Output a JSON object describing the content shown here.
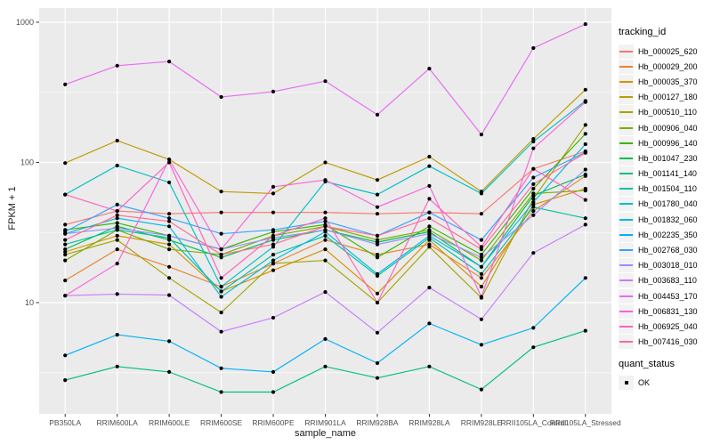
{
  "figure": {
    "y_axis": {
      "label": "FPKM + 1",
      "tick_labels": [
        "1000",
        "100",
        "10"
      ],
      "tick_values": [
        1000,
        100,
        10
      ]
    },
    "x_axis": {
      "label": "sample_name"
    },
    "legend": {
      "tracking_title": "tracking_id",
      "quant_title": "quant_status",
      "quant_label": "OK"
    },
    "colors": {
      "panel_background": "#EBEBEB",
      "gridline_major": "#FFFFFF",
      "gridline_minor": "#F7F7F7",
      "tick_text": "#4D4D4D",
      "point": "#000000",
      "legend_key_background": "#F2F2F2"
    }
  },
  "chart_data": {
    "type": "line",
    "title": "",
    "xlabel": "sample_name",
    "ylabel": "FPKM + 1",
    "y_scale": "log10",
    "ylim": [
      1.6,
      1250
    ],
    "grid": "major-and-minor",
    "legend_position": "right",
    "point_marker": "black dot on every vertex",
    "quant_status": "OK",
    "categories": [
      "PB350LA",
      "RRIM600LA",
      "RRIM600LE",
      "RRIM600SE",
      "RRIM600PE",
      "RRIM901LA",
      "RRIM928BA",
      "RRIM928LA",
      "RRIM928LE",
      "RRII105LA_Control",
      "RRII105LA_Stressed"
    ],
    "series": [
      {
        "name": "Hb_000025_620",
        "color": "#F8766D",
        "values": [
          36,
          45,
          43,
          44,
          44,
          44,
          43,
          44,
          43,
          90,
          120
        ]
      },
      {
        "name": "Hb_000029_200",
        "color": "#EA8331",
        "values": [
          14.4,
          24,
          18,
          13,
          19,
          28,
          22,
          26,
          15,
          45,
          80
        ]
      },
      {
        "name": "Hb_000035_370",
        "color": "#D89000",
        "values": [
          23,
          30,
          26,
          12,
          17,
          24,
          11.6,
          28,
          13,
          50,
          65
        ]
      },
      {
        "name": "Hb_000127_180",
        "color": "#C09B00",
        "values": [
          99,
          143,
          105,
          62,
          60,
          100,
          75,
          110,
          62,
          147,
          330
        ]
      },
      {
        "name": "Hb_000510_110",
        "color": "#A3A500",
        "values": [
          22,
          28,
          15,
          8.5,
          19,
          20,
          10,
          25,
          10.8,
          55,
          185
        ]
      },
      {
        "name": "Hb_000906_040",
        "color": "#7CAE00",
        "values": [
          20,
          33,
          24,
          22,
          30,
          35,
          28,
          33,
          20,
          60,
          63
        ]
      },
      {
        "name": "Hb_000996_140",
        "color": "#39B600",
        "values": [
          33,
          37,
          30,
          24,
          32,
          36,
          21,
          35,
          22,
          65,
          160
        ]
      },
      {
        "name": "Hb_001047_230",
        "color": "#00BB4E",
        "values": [
          24,
          35,
          28,
          21,
          28,
          33,
          27,
          32,
          18,
          58,
          82
        ]
      },
      {
        "name": "Hb_001141_140",
        "color": "#00BF7D",
        "values": [
          2.8,
          3.5,
          3.2,
          2.3,
          2.3,
          3.5,
          2.9,
          3.5,
          2.4,
          4.8,
          6.3
        ]
      },
      {
        "name": "Hb_001504_110",
        "color": "#00C1A3",
        "values": [
          26,
          33,
          29,
          12,
          22,
          30,
          15.5,
          29,
          16,
          48,
          40
        ]
      },
      {
        "name": "Hb_001780_040",
        "color": "#00BFC4",
        "values": [
          59,
          95,
          72,
          13,
          25,
          73,
          59,
          94,
          60,
          141,
          275
        ]
      },
      {
        "name": "Hb_001832_060",
        "color": "#00BAE0",
        "values": [
          31,
          40,
          35,
          11,
          20,
          32,
          16,
          30,
          18,
          52,
          135
        ]
      },
      {
        "name": "Hb_002235_350",
        "color": "#00B0F6",
        "values": [
          4.2,
          5.9,
          5.3,
          3.4,
          3.2,
          5.5,
          3.7,
          7.1,
          5,
          6.6,
          15
        ]
      },
      {
        "name": "Hb_002768_030",
        "color": "#35A2FF",
        "values": [
          32,
          50,
          40,
          31,
          33,
          38,
          30,
          44,
          28,
          78,
          118
        ]
      },
      {
        "name": "Hb_003018_010",
        "color": "#9590FF",
        "values": [
          31,
          34,
          30,
          24,
          29,
          33,
          26,
          31,
          21,
          42,
          89
        ]
      },
      {
        "name": "Hb_003683_110",
        "color": "#C77CFF",
        "values": [
          11.2,
          11.5,
          11.3,
          6.2,
          7.8,
          11.9,
          6.1,
          12.8,
          7.6,
          22.6,
          36
        ]
      },
      {
        "name": "Hb_004453_170",
        "color": "#E76BF3",
        "values": [
          360,
          490,
          525,
          293,
          320,
          380,
          219,
          467,
          158,
          654,
          970
        ]
      },
      {
        "name": "Hb_006831_130",
        "color": "#FA62DB",
        "values": [
          11.2,
          19,
          105,
          24,
          67,
          75,
          48,
          68,
          11,
          126,
          270
        ]
      },
      {
        "name": "Hb_006925_040",
        "color": "#FF62BC",
        "values": [
          59,
          45,
          100,
          15,
          30,
          40,
          10,
          55,
          25,
          90,
          54
        ]
      },
      {
        "name": "Hb_007416_030",
        "color": "#FF6A98",
        "values": [
          28,
          42,
          38,
          22,
          26,
          35,
          30,
          40,
          24,
          70,
          117
        ]
      }
    ]
  }
}
